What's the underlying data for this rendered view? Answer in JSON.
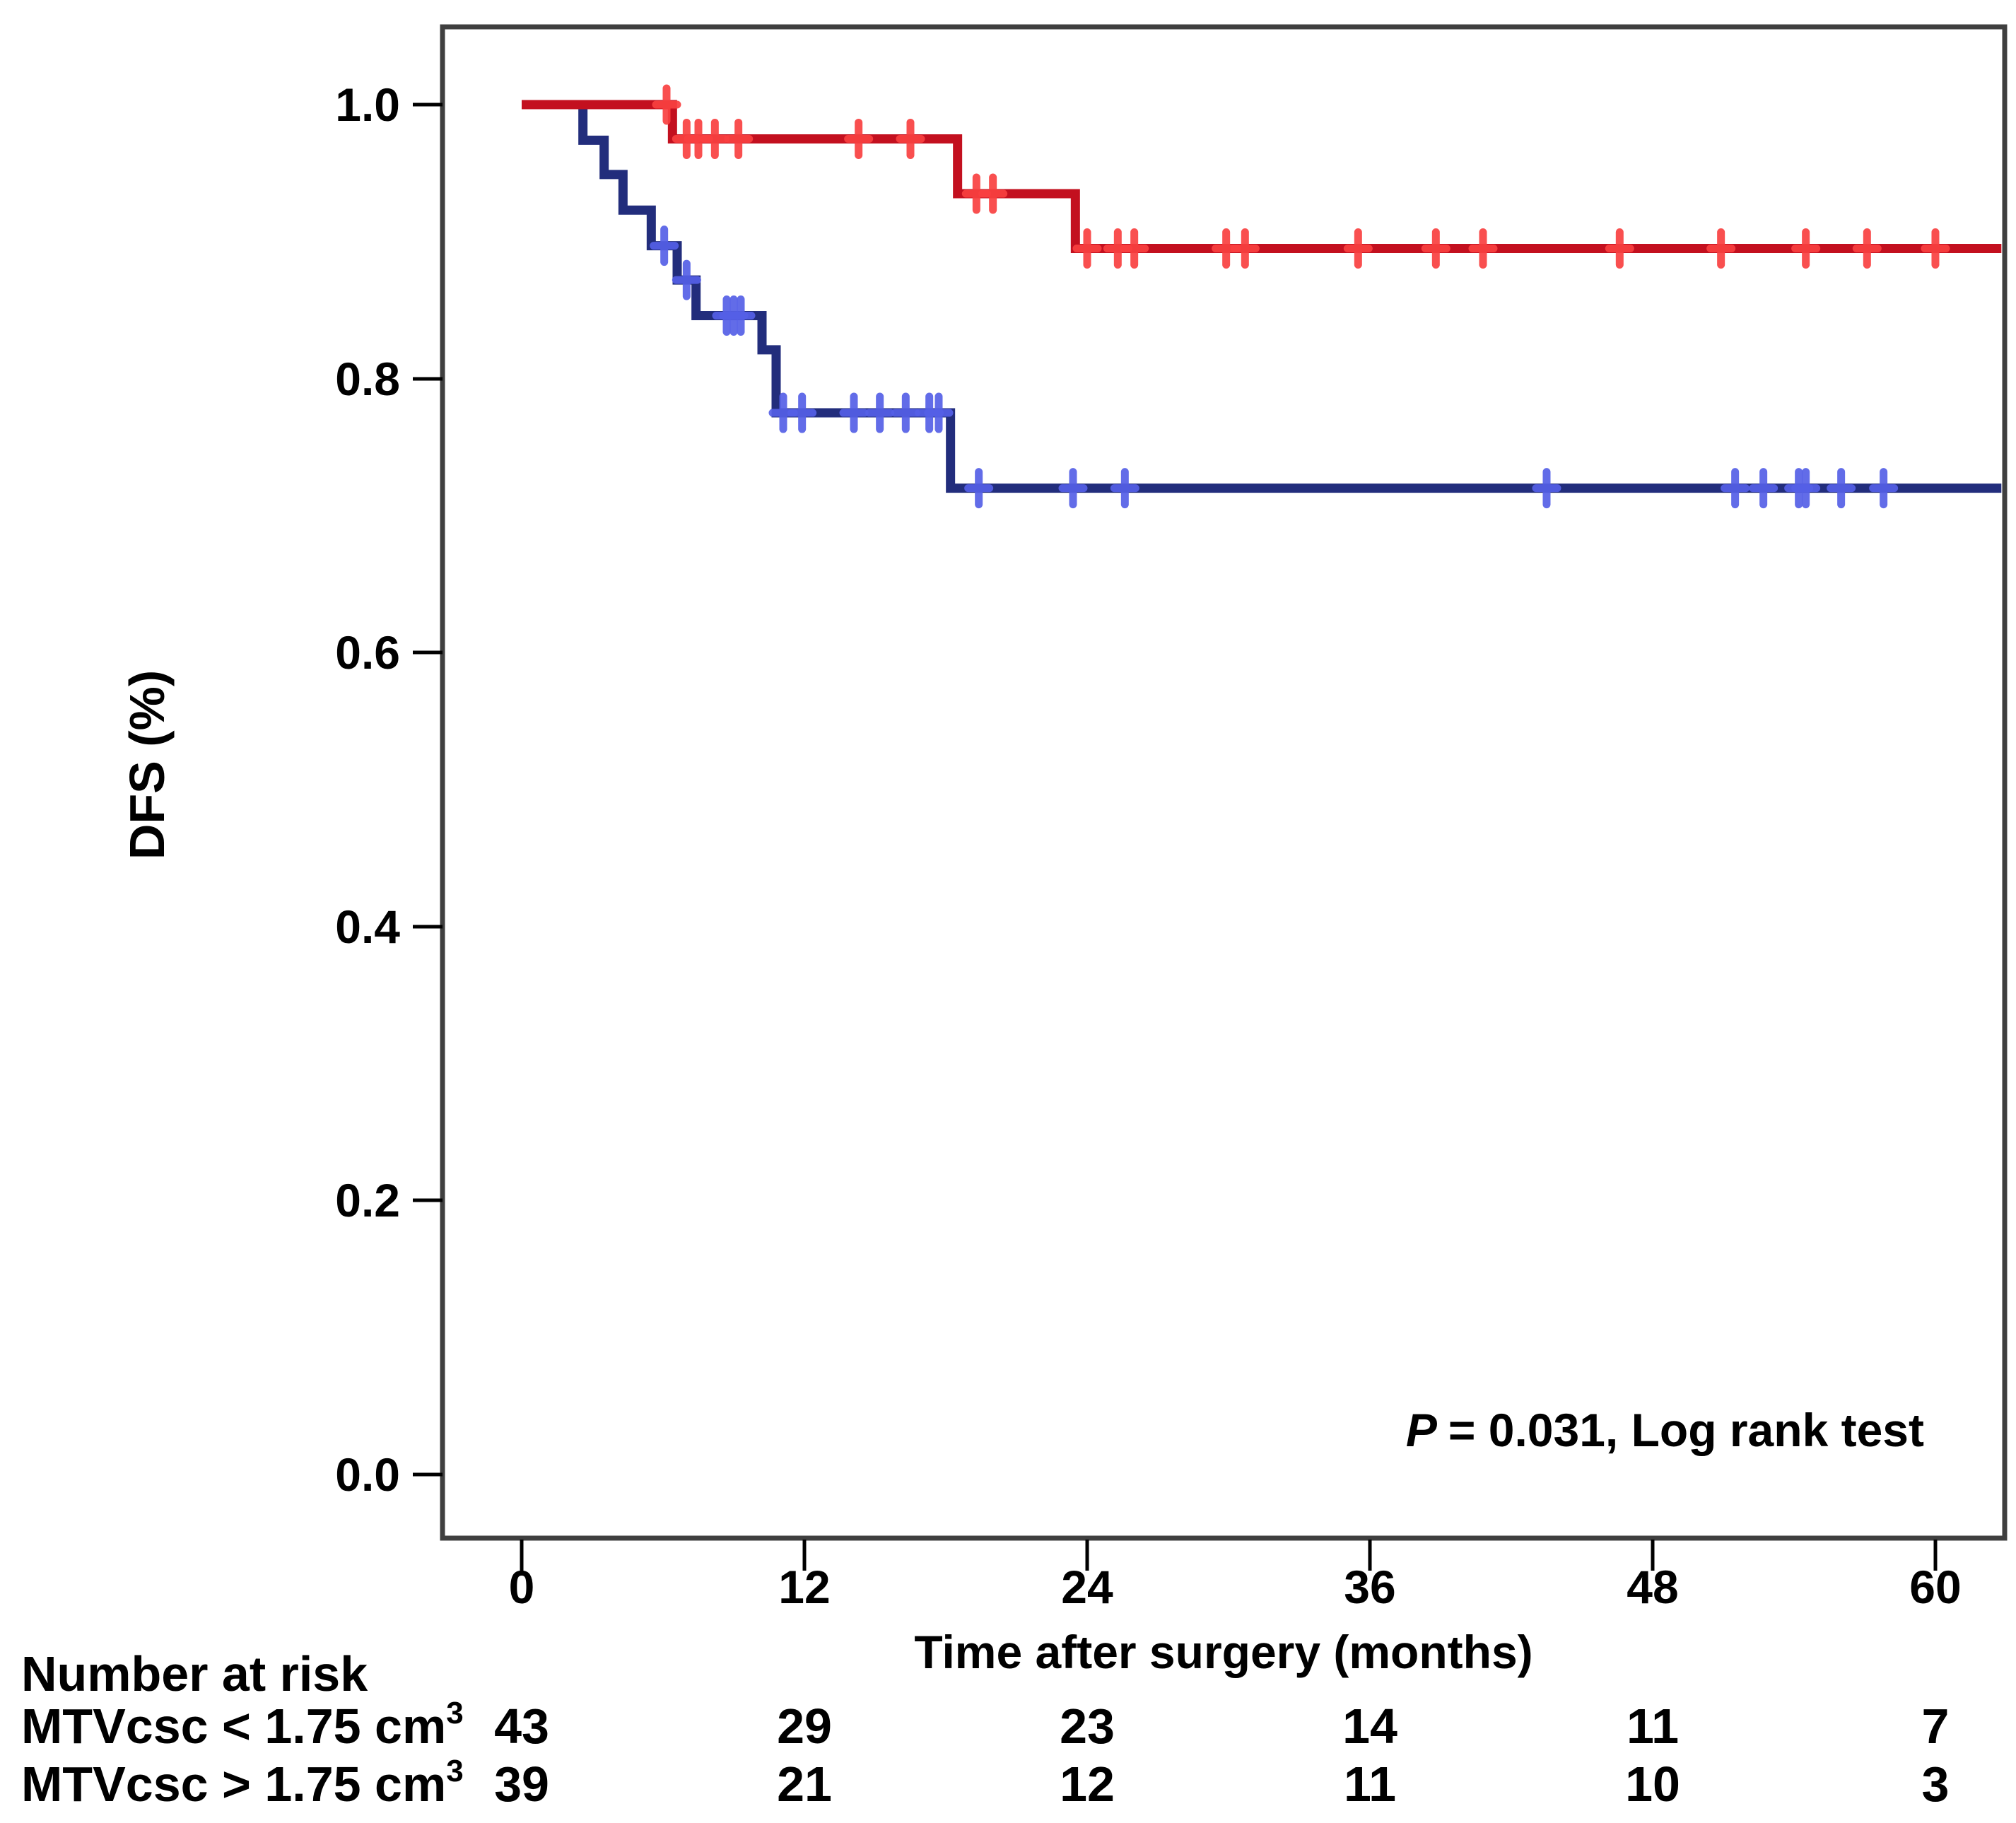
{
  "chart_data": {
    "type": "line",
    "subtype": "kaplan-meier-step",
    "title": "",
    "xlabel": "Time after surgery (months)",
    "ylabel": "DFS (%)",
    "xticks": [
      0,
      12,
      24,
      36,
      48,
      60
    ],
    "yticks": [
      "1.0",
      "0.8",
      "0.6",
      "0.4",
      "0.2",
      "0.0"
    ],
    "xlim": [
      -3.4,
      62.9
    ],
    "ylim": [
      -0.05,
      1.06
    ],
    "grid": false,
    "legend": "none",
    "annotation": {
      "p_label": "P",
      "rest": "= 0.031, Log rank test"
    },
    "series": [
      {
        "name": "MTVcsc > 1.75 cm3",
        "color": "#222d7c",
        "censor_color": "#5560e6",
        "start": [
          0,
          1.0
        ],
        "drops": [
          {
            "t": 2.6,
            "v": 0.974
          },
          {
            "t": 3.5,
            "v": 0.949
          },
          {
            "t": 4.3,
            "v": 0.923
          },
          {
            "t": 5.5,
            "v": 0.897
          },
          {
            "t": 6.6,
            "v": 0.872
          },
          {
            "t": 7.4,
            "v": 0.846
          },
          {
            "t": 10.2,
            "v": 0.821
          },
          {
            "t": 10.8,
            "v": 0.775
          },
          {
            "t": 18.2,
            "v": 0.72
          }
        ],
        "censors": [
          [
            6.05,
            0.897
          ],
          [
            7.0,
            0.872
          ],
          [
            8.7,
            0.846
          ],
          [
            9.0,
            0.846
          ],
          [
            9.3,
            0.846
          ],
          [
            11.1,
            0.775
          ],
          [
            11.9,
            0.775
          ],
          [
            14.1,
            0.775
          ],
          [
            15.2,
            0.775
          ],
          [
            16.3,
            0.775
          ],
          [
            17.3,
            0.775
          ],
          [
            17.7,
            0.775
          ],
          [
            19.4,
            0.72
          ],
          [
            23.4,
            0.72
          ],
          [
            25.6,
            0.72
          ],
          [
            43.5,
            0.72
          ],
          [
            51.5,
            0.72
          ],
          [
            52.7,
            0.72
          ],
          [
            54.2,
            0.72
          ],
          [
            54.5,
            0.72
          ],
          [
            56.0,
            0.72
          ],
          [
            57.8,
            0.72
          ]
        ],
        "end_time": 62.8
      },
      {
        "name": "MTVcsc < 1.75 cm3",
        "color": "#c3101f",
        "censor_color": "#f94040",
        "start": [
          0,
          1.0
        ],
        "drops": [
          {
            "t": 6.4,
            "v": 0.975
          },
          {
            "t": 18.5,
            "v": 0.935
          },
          {
            "t": 23.5,
            "v": 0.895
          }
        ],
        "censors": [
          [
            6.15,
            1.0
          ],
          [
            7.0,
            0.975
          ],
          [
            7.5,
            0.975
          ],
          [
            8.2,
            0.975
          ],
          [
            9.2,
            0.975
          ],
          [
            14.3,
            0.975
          ],
          [
            16.5,
            0.975
          ],
          [
            19.3,
            0.935
          ],
          [
            20.0,
            0.935
          ],
          [
            24.0,
            0.895
          ],
          [
            25.3,
            0.895
          ],
          [
            26.0,
            0.895
          ],
          [
            29.9,
            0.895
          ],
          [
            30.7,
            0.895
          ],
          [
            35.5,
            0.895
          ],
          [
            38.8,
            0.895
          ],
          [
            40.8,
            0.895
          ],
          [
            46.6,
            0.895
          ],
          [
            50.9,
            0.895
          ],
          [
            54.5,
            0.895
          ],
          [
            57.1,
            0.895
          ],
          [
            60.0,
            0.895
          ]
        ],
        "end_time": 62.8
      }
    ]
  },
  "risk_table": {
    "title": "Number at risk",
    "rows": [
      {
        "label": "MTVcsc < 1.75 cm",
        "sup": "3",
        "color": "#e91c2b",
        "values": [
          "43",
          "29",
          "23",
          "14",
          "11",
          "7"
        ]
      },
      {
        "label": "MTVcsc > 1.75 cm",
        "sup": "3",
        "color": "#1a3a74",
        "values": [
          "39",
          "21",
          "12",
          "11",
          "10",
          "3"
        ]
      }
    ]
  }
}
